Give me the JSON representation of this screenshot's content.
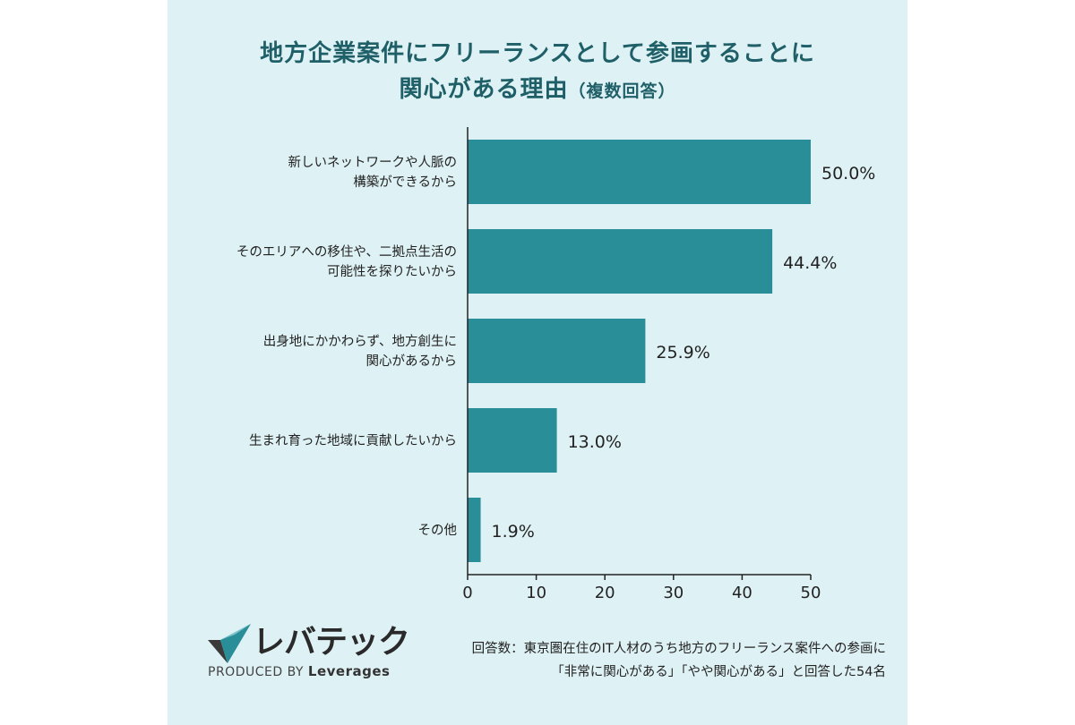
{
  "title": {
    "line1": "地方企業案件にフリーランスとして参画することに",
    "line2": "関心がある理由",
    "line2_suffix": "（複数回答）"
  },
  "chart_data": {
    "type": "bar",
    "orientation": "horizontal",
    "categories": [
      [
        "新しいネットワークや人脈の",
        "構築ができるから"
      ],
      [
        "そのエリアへの移住や、二拠点生活の",
        "可能性を探りたいから"
      ],
      [
        "出身地にかかわらず、地方創生に",
        "関心があるから"
      ],
      [
        "生まれ育った地域に貢献したいから"
      ],
      [
        "その他"
      ]
    ],
    "values": [
      50.0,
      44.4,
      25.9,
      13.0,
      1.9
    ],
    "value_labels": [
      "50.0%",
      "44.4%",
      "25.9%",
      "13.0%",
      "1.9%"
    ],
    "xlim": [
      0,
      50
    ],
    "xticks": [
      "0",
      "10",
      "20",
      "30",
      "40",
      "50"
    ],
    "bar_color": "#2a8e99",
    "grid": false
  },
  "footer": {
    "note_line1": "回答数：東京圏在住のIT人材のうち地方のフリーランス案件への参画に",
    "note_line2": "「非常に関心がある」「やや関心がある」と回答した54名"
  },
  "logo": {
    "name": "レバテック",
    "produced_by": "PRODUCED BY",
    "company": "Leverages"
  },
  "colors": {
    "background": "#def1f4",
    "title": "#1f5f68",
    "bar": "#2a8e99"
  }
}
